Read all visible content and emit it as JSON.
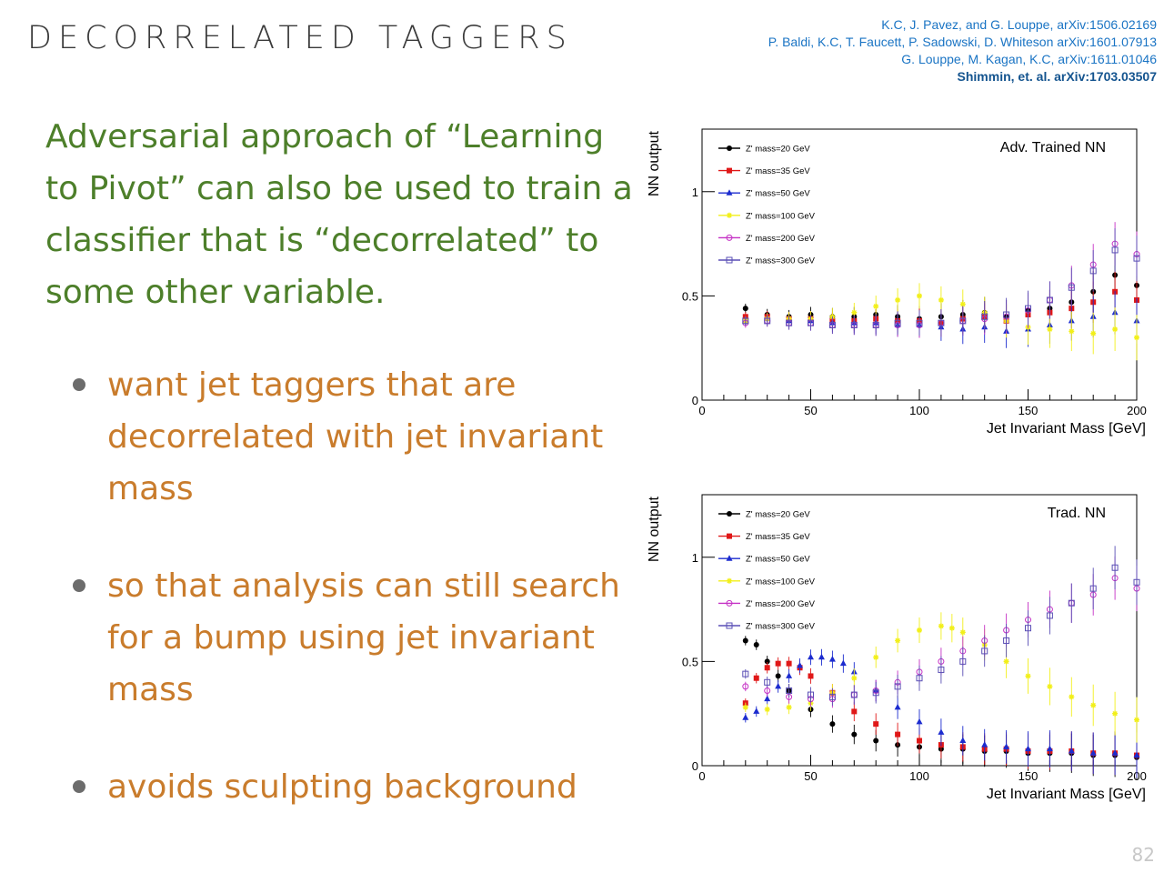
{
  "slide": {
    "title": "DECORRELATED TAGGERS",
    "references": [
      "K.C, J. Pavez, and G. Louppe, arXiv:1506.02169",
      "P. Baldi, K.C, T. Faucett, P. Sadowski, D. Whiteson  arXiv:1601.07913",
      "G. Louppe, M. Kagan, K.C, arXiv:1611.01046",
      "Shimmin, et. al. arXiv:1703.03507"
    ],
    "intro": "Adversarial approach of “Learning to Pivot” can also be used to train a classifier that is “decorrelated” to some other variable.",
    "bullets": [
      "want jet taggers that are decorrelated with jet invariant mass",
      "so that analysis can still search for a bump using jet invariant mass",
      "avoids sculpting background"
    ],
    "page_number": "82",
    "colors": {
      "intro": "#4d7f2a",
      "bullets": "#c97c2c",
      "refs": "#1a74c4"
    }
  },
  "chart_data": [
    {
      "type": "scatter",
      "title": "Adv. Trained NN",
      "xlabel": "Jet Invariant Mass [GeV]",
      "ylabel": "NN output",
      "xlim": [
        0,
        200
      ],
      "ylim": [
        0,
        1.3
      ],
      "xticks": [
        0,
        50,
        100,
        150,
        200
      ],
      "yticks": [
        0,
        0.5,
        1
      ],
      "legend_position": "top-left",
      "series": [
        {
          "name": "Z' mass=20 GeV",
          "color": "#000000",
          "marker": "circle-filled",
          "x": [
            20,
            30,
            40,
            50,
            60,
            70,
            80,
            90,
            100,
            110,
            120,
            130,
            140,
            150,
            160,
            170,
            180,
            190,
            200
          ],
          "y": [
            0.44,
            0.41,
            0.4,
            0.41,
            0.4,
            0.4,
            0.41,
            0.4,
            0.39,
            0.4,
            0.41,
            0.42,
            0.4,
            0.43,
            0.44,
            0.47,
            0.52,
            0.6,
            0.55
          ]
        },
        {
          "name": "Z' mass=35 GeV",
          "color": "#e01818",
          "marker": "square-filled",
          "x": [
            20,
            30,
            40,
            50,
            60,
            70,
            80,
            90,
            100,
            110,
            120,
            130,
            140,
            150,
            160,
            170,
            180,
            190,
            200
          ],
          "y": [
            0.4,
            0.4,
            0.39,
            0.39,
            0.38,
            0.38,
            0.39,
            0.38,
            0.38,
            0.37,
            0.39,
            0.4,
            0.38,
            0.41,
            0.42,
            0.44,
            0.47,
            0.52,
            0.48
          ]
        },
        {
          "name": "Z' mass=50 GeV",
          "color": "#1c2ccf",
          "marker": "triangle-filled",
          "x": [
            20,
            30,
            40,
            50,
            60,
            70,
            80,
            90,
            100,
            110,
            120,
            130,
            140,
            150,
            160,
            170,
            180,
            190,
            200
          ],
          "y": [
            0.38,
            0.39,
            0.38,
            0.38,
            0.37,
            0.37,
            0.37,
            0.36,
            0.36,
            0.35,
            0.34,
            0.35,
            0.33,
            0.34,
            0.36,
            0.38,
            0.4,
            0.42,
            0.38
          ]
        },
        {
          "name": "Z' mass=100 GeV",
          "color": "#f2ef1a",
          "marker": "star",
          "x": [
            20,
            30,
            40,
            50,
            60,
            70,
            80,
            90,
            100,
            110,
            120,
            130,
            140,
            150,
            160,
            170,
            180,
            190,
            200
          ],
          "y": [
            0.38,
            0.39,
            0.39,
            0.39,
            0.4,
            0.42,
            0.45,
            0.48,
            0.5,
            0.48,
            0.46,
            0.42,
            0.38,
            0.35,
            0.34,
            0.33,
            0.32,
            0.34,
            0.3
          ]
        },
        {
          "name": "Z' mass=200 GeV",
          "color": "#c531c5",
          "marker": "circle-open",
          "x": [
            20,
            30,
            40,
            50,
            60,
            70,
            80,
            90,
            100,
            110,
            120,
            130,
            140,
            150,
            160,
            170,
            180,
            190,
            200
          ],
          "y": [
            0.37,
            0.38,
            0.37,
            0.37,
            0.36,
            0.36,
            0.36,
            0.36,
            0.36,
            0.37,
            0.38,
            0.39,
            0.4,
            0.43,
            0.48,
            0.55,
            0.65,
            0.75,
            0.7
          ]
        },
        {
          "name": "Z' mass=300 GeV",
          "color": "#5a4fb5",
          "marker": "square-open",
          "x": [
            20,
            30,
            40,
            50,
            60,
            70,
            80,
            90,
            100,
            110,
            120,
            130,
            140,
            150,
            160,
            170,
            180,
            190,
            200
          ],
          "y": [
            0.38,
            0.38,
            0.37,
            0.37,
            0.36,
            0.36,
            0.36,
            0.37,
            0.37,
            0.37,
            0.38,
            0.4,
            0.41,
            0.44,
            0.48,
            0.54,
            0.62,
            0.72,
            0.68
          ]
        }
      ]
    },
    {
      "type": "scatter",
      "title": "Trad. NN",
      "xlabel": "Jet Invariant Mass [GeV]",
      "ylabel": "NN output",
      "xlim": [
        0,
        200
      ],
      "ylim": [
        0,
        1.3
      ],
      "xticks": [
        0,
        50,
        100,
        150,
        200
      ],
      "yticks": [
        0,
        0.5,
        1
      ],
      "legend_position": "top-left",
      "series": [
        {
          "name": "Z' mass=20 GeV",
          "color": "#000000",
          "marker": "circle-filled",
          "x": [
            20,
            25,
            30,
            35,
            40,
            50,
            60,
            70,
            80,
            90,
            100,
            110,
            120,
            130,
            140,
            150,
            160,
            170,
            180,
            190,
            200
          ],
          "y": [
            0.6,
            0.58,
            0.5,
            0.43,
            0.36,
            0.27,
            0.2,
            0.15,
            0.12,
            0.1,
            0.09,
            0.08,
            0.08,
            0.07,
            0.07,
            0.06,
            0.06,
            0.06,
            0.05,
            0.05,
            0.04
          ]
        },
        {
          "name": "Z' mass=35 GeV",
          "color": "#e01818",
          "marker": "square-filled",
          "x": [
            20,
            25,
            30,
            35,
            40,
            45,
            50,
            60,
            70,
            80,
            90,
            100,
            110,
            120,
            130,
            140,
            150,
            160,
            170,
            180,
            190,
            200
          ],
          "y": [
            0.3,
            0.42,
            0.47,
            0.49,
            0.49,
            0.47,
            0.43,
            0.35,
            0.26,
            0.2,
            0.15,
            0.12,
            0.1,
            0.09,
            0.08,
            0.08,
            0.07,
            0.07,
            0.07,
            0.06,
            0.06,
            0.05
          ]
        },
        {
          "name": "Z' mass=50 GeV",
          "color": "#1c2ccf",
          "marker": "triangle-filled",
          "x": [
            20,
            25,
            30,
            35,
            40,
            45,
            50,
            55,
            60,
            65,
            70,
            80,
            90,
            100,
            110,
            120,
            130,
            140,
            150,
            160,
            170,
            180,
            190,
            200
          ],
          "y": [
            0.23,
            0.26,
            0.32,
            0.38,
            0.43,
            0.48,
            0.52,
            0.52,
            0.51,
            0.49,
            0.45,
            0.36,
            0.28,
            0.21,
            0.16,
            0.12,
            0.1,
            0.09,
            0.08,
            0.08,
            0.07,
            0.06,
            0.06,
            0.05
          ]
        },
        {
          "name": "Z' mass=100 GeV",
          "color": "#f2ef1a",
          "marker": "star",
          "x": [
            20,
            30,
            40,
            50,
            60,
            70,
            80,
            90,
            100,
            110,
            115,
            120,
            130,
            140,
            150,
            160,
            170,
            180,
            190,
            200
          ],
          "y": [
            0.28,
            0.27,
            0.28,
            0.3,
            0.35,
            0.42,
            0.52,
            0.6,
            0.65,
            0.67,
            0.66,
            0.64,
            0.58,
            0.5,
            0.43,
            0.38,
            0.33,
            0.29,
            0.25,
            0.22
          ]
        },
        {
          "name": "Z' mass=200 GeV",
          "color": "#c531c5",
          "marker": "circle-open",
          "x": [
            20,
            30,
            40,
            50,
            60,
            70,
            80,
            90,
            100,
            110,
            120,
            130,
            140,
            150,
            160,
            170,
            180,
            190,
            200
          ],
          "y": [
            0.38,
            0.36,
            0.33,
            0.32,
            0.32,
            0.34,
            0.36,
            0.4,
            0.45,
            0.5,
            0.55,
            0.6,
            0.65,
            0.7,
            0.75,
            0.78,
            0.82,
            0.9,
            0.85
          ]
        },
        {
          "name": "Z' mass=300 GeV",
          "color": "#5a4fb5",
          "marker": "square-open",
          "x": [
            20,
            30,
            40,
            50,
            60,
            70,
            80,
            90,
            100,
            110,
            120,
            130,
            140,
            150,
            160,
            170,
            180,
            190,
            200
          ],
          "y": [
            0.44,
            0.4,
            0.36,
            0.34,
            0.33,
            0.34,
            0.35,
            0.38,
            0.42,
            0.46,
            0.5,
            0.55,
            0.6,
            0.66,
            0.72,
            0.78,
            0.85,
            0.95,
            0.88
          ]
        }
      ]
    }
  ]
}
